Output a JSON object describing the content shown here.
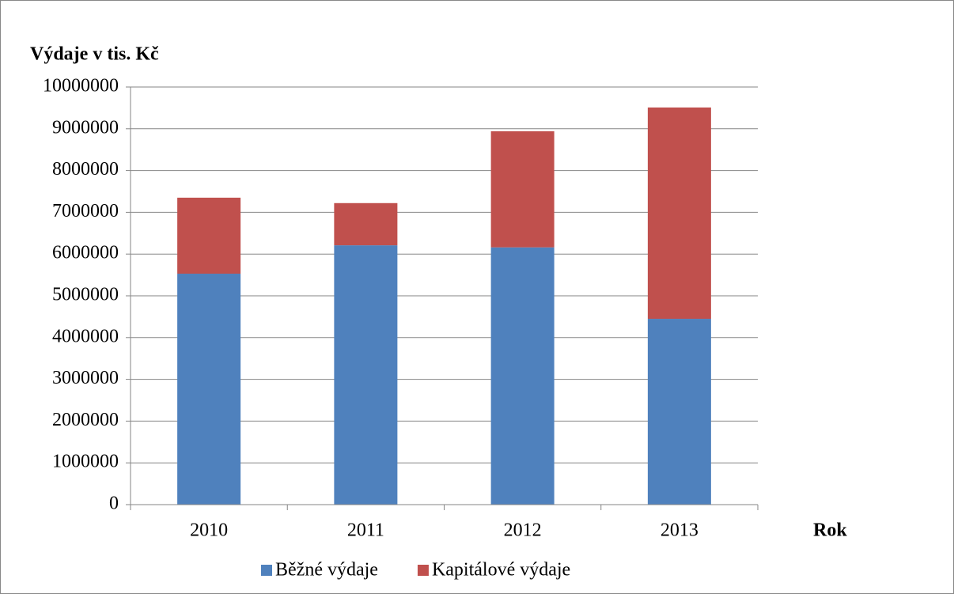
{
  "chart_data": {
    "type": "bar",
    "stacked": true,
    "title": "Výdaje v tis. Kč",
    "x_label": "Rok",
    "categories": [
      "2010",
      "2011",
      "2012",
      "2013"
    ],
    "series": [
      {
        "name": "Běžné výdaje",
        "color": "#4f81bd",
        "values": [
          5530000,
          6210000,
          6160000,
          4450000
        ]
      },
      {
        "name": "Kapitálové výdaje",
        "color": "#c0504d",
        "values": [
          1820000,
          1010000,
          2780000,
          5060000
        ]
      }
    ],
    "ylim": [
      0,
      10000000
    ],
    "yticks": [
      0,
      1000000,
      2000000,
      3000000,
      4000000,
      5000000,
      6000000,
      7000000,
      8000000,
      9000000,
      10000000
    ],
    "grid": true,
    "legend": "bottom"
  }
}
